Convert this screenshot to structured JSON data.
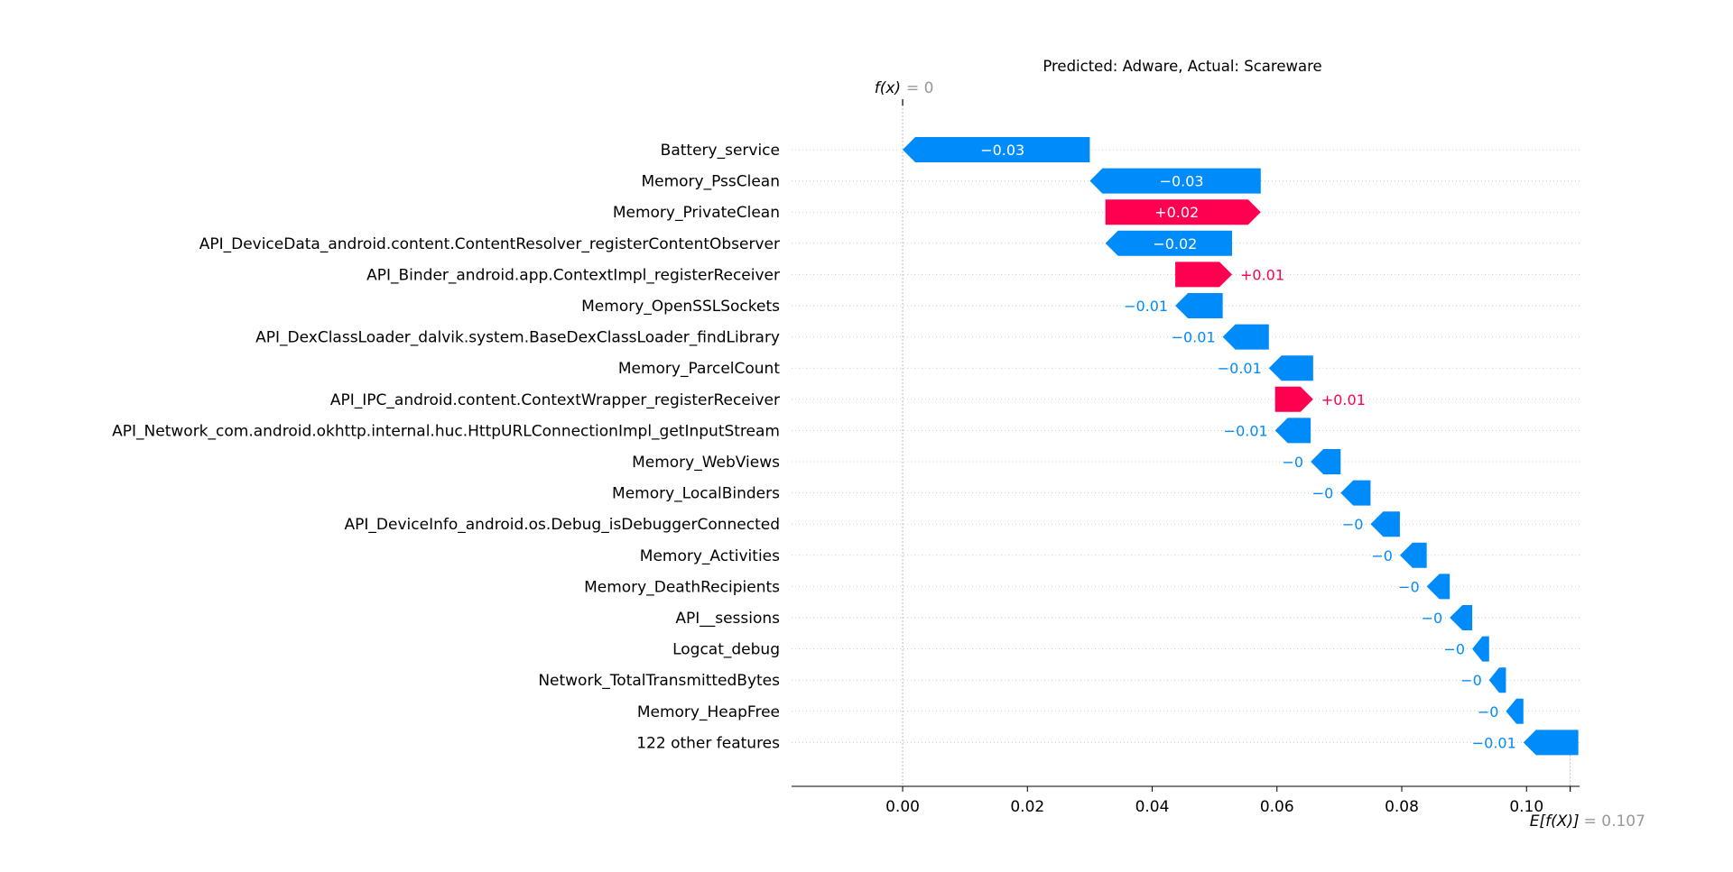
{
  "chart_data": {
    "type": "waterfall",
    "title": "Predicted: Adware, Actual: Scareware",
    "fx_label": "f(x)",
    "fx_value_text": "= 0",
    "efx_label": "E[f(X)]",
    "efx_value_text": "= 0.107",
    "fx_value": 0,
    "base_value": 0.107,
    "xlim": [
      -0.0178,
      0.1085
    ],
    "xticks": [
      0.0,
      0.02,
      0.04,
      0.06,
      0.08,
      0.1
    ],
    "xtick_labels": [
      "0.00",
      "0.02",
      "0.04",
      "0.06",
      "0.08",
      "0.10"
    ],
    "colors": {
      "positive": "#ff0051",
      "negative": "#008bfb",
      "axis": "#000000",
      "grid": "#cccccc"
    },
    "features": [
      {
        "name": "Battery_service",
        "start": 0.0,
        "end": 0.03,
        "label": "−0.03",
        "sign": "neg"
      },
      {
        "name": "Memory_PssClean",
        "start": 0.03,
        "end": 0.0574,
        "label": "−0.03",
        "sign": "neg"
      },
      {
        "name": "Memory_PrivateClean",
        "start": 0.0325,
        "end": 0.0574,
        "label": "+0.02",
        "sign": "pos"
      },
      {
        "name": "API_DeviceData_android.content.ContentResolver_registerContentObserver",
        "start": 0.0325,
        "end": 0.0528,
        "label": "−0.02",
        "sign": "neg"
      },
      {
        "name": "API_Binder_android.app.ContextImpl_registerReceiver",
        "start": 0.0437,
        "end": 0.0528,
        "label": "+0.01",
        "sign": "pos"
      },
      {
        "name": "Memory_OpenSSLSockets",
        "start": 0.0437,
        "end": 0.0513,
        "label": "−0.01",
        "sign": "neg"
      },
      {
        "name": "API_DexClassLoader_dalvik.system.BaseDexClassLoader_findLibrary",
        "start": 0.0513,
        "end": 0.0587,
        "label": "−0.01",
        "sign": "neg"
      },
      {
        "name": "Memory_ParcelCount",
        "start": 0.0587,
        "end": 0.0658,
        "label": "−0.01",
        "sign": "neg"
      },
      {
        "name": "API_IPC_android.content.ContextWrapper_registerReceiver",
        "start": 0.0597,
        "end": 0.0658,
        "label": "+0.01",
        "sign": "pos"
      },
      {
        "name": "API_Network_com.android.okhttp.internal.huc.HttpURLConnectionImpl_getInputStream",
        "start": 0.0597,
        "end": 0.0654,
        "label": "−0.01",
        "sign": "neg"
      },
      {
        "name": "Memory_WebViews",
        "start": 0.0654,
        "end": 0.0702,
        "label": "−0",
        "sign": "neg"
      },
      {
        "name": "Memory_LocalBinders",
        "start": 0.0702,
        "end": 0.075,
        "label": "−0",
        "sign": "neg"
      },
      {
        "name": "API_DeviceInfo_android.os.Debug_isDebuggerConnected",
        "start": 0.075,
        "end": 0.0797,
        "label": "−0",
        "sign": "neg"
      },
      {
        "name": "Memory_Activities",
        "start": 0.0797,
        "end": 0.084,
        "label": "−0",
        "sign": "neg"
      },
      {
        "name": "Memory_DeathRecipients",
        "start": 0.084,
        "end": 0.0877,
        "label": "−0",
        "sign": "neg"
      },
      {
        "name": "API__sessions",
        "start": 0.0877,
        "end": 0.0913,
        "label": "−0",
        "sign": "neg"
      },
      {
        "name": "Logcat_debug",
        "start": 0.0913,
        "end": 0.094,
        "label": "−0",
        "sign": "neg"
      },
      {
        "name": "Network_TotalTransmittedBytes",
        "start": 0.094,
        "end": 0.0967,
        "label": "−0",
        "sign": "neg"
      },
      {
        "name": "Memory_HeapFree",
        "start": 0.0967,
        "end": 0.0995,
        "label": "−0",
        "sign": "neg"
      },
      {
        "name": "122 other features",
        "start": 0.0995,
        "end": 0.1083,
        "label": "−0.01",
        "sign": "neg"
      }
    ]
  }
}
